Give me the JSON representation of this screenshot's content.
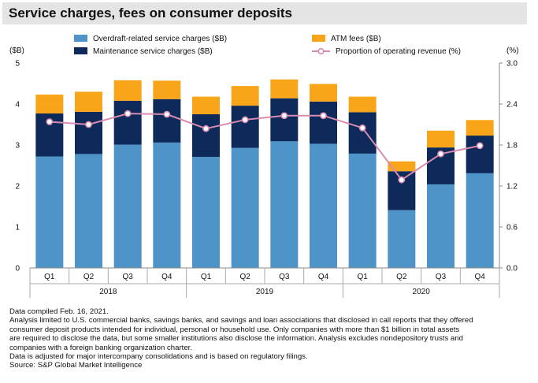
{
  "title": "Service charges, fees on consumer deposits",
  "chart_data": {
    "type": "bar",
    "stacked": true,
    "quarters": [
      "Q1",
      "Q2",
      "Q3",
      "Q4",
      "Q1",
      "Q2",
      "Q3",
      "Q4",
      "Q1",
      "Q2",
      "Q3",
      "Q4"
    ],
    "years": [
      "2018",
      "2019",
      "2020"
    ],
    "left_axis": {
      "unit": "($B)",
      "min": 0,
      "max": 5,
      "ticks": [
        "0",
        "1",
        "2",
        "3",
        "4",
        "5"
      ]
    },
    "right_axis": {
      "unit": "(%)",
      "min": 0,
      "max": 3.0,
      "ticks": [
        "0.0",
        "0.6",
        "1.2",
        "1.8",
        "2.4",
        "3.0"
      ]
    },
    "series": [
      {
        "name": "Overdraft-related service charges ($B)",
        "color": "#4f94c8",
        "values": [
          2.72,
          2.78,
          3.01,
          3.06,
          2.71,
          2.93,
          3.09,
          3.03,
          2.79,
          1.41,
          2.04,
          2.31
        ]
      },
      {
        "name": "Maintenance service charges ($B)",
        "color": "#0d2a5a",
        "values": [
          1.05,
          1.03,
          1.07,
          1.06,
          1.04,
          1.03,
          1.05,
          1.03,
          1.01,
          0.95,
          0.9,
          0.92
        ]
      },
      {
        "name": "ATM fees ($B)",
        "color": "#f9a51a",
        "values": [
          0.46,
          0.49,
          0.5,
          0.45,
          0.43,
          0.48,
          0.46,
          0.43,
          0.38,
          0.24,
          0.41,
          0.38
        ]
      }
    ],
    "line": {
      "name": "Proportion of operating revenue (%)",
      "color": "#d98bb0",
      "values": [
        2.14,
        2.1,
        2.26,
        2.25,
        2.04,
        2.17,
        2.23,
        2.23,
        2.05,
        1.29,
        1.67,
        1.79
      ]
    },
    "legend": "top"
  },
  "notes": [
    "Data compiled Feb. 16, 2021.",
    "Analysis limited to U.S. commercial banks, savings banks, and savings and loan associations that disclosed in call reports that they offered",
    "consumer deposit products intended for individual, personal or household use. Only companies with more than $1 billion in total assets",
    "are required to disclose the data, but some smaller institutions also disclose the information. Analysis excludes nondepository trusts and",
    "companies with a foreign banking organization charter.",
    "Data is adjusted for major intercompany consolidations and is based on regulatory filings.",
    "Source: S&P Global Market Intelligence"
  ]
}
